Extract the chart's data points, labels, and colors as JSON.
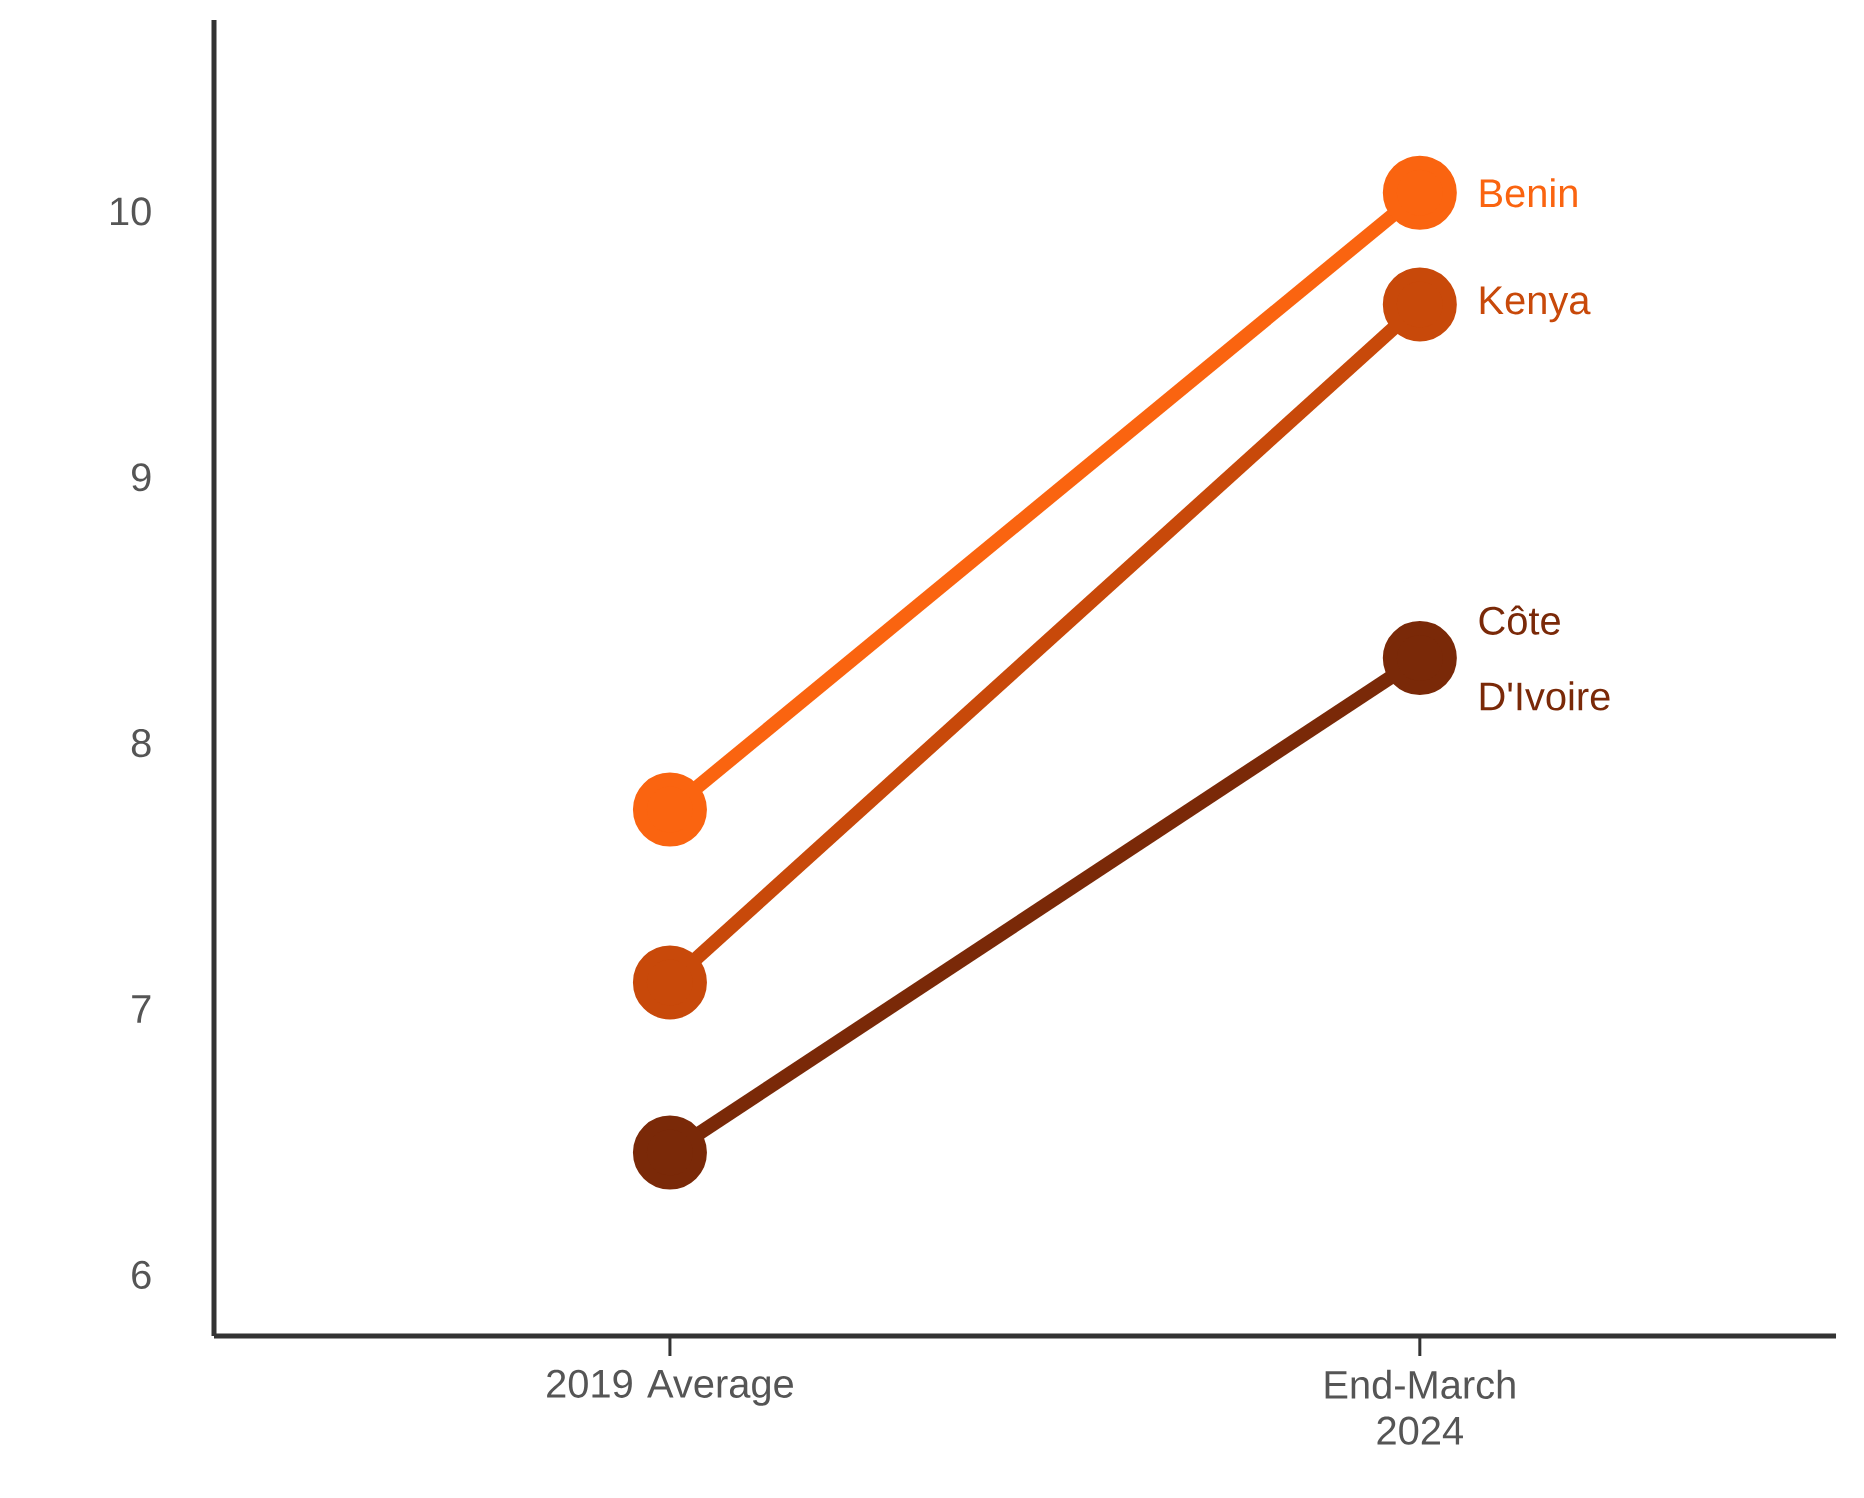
{
  "chart_data": {
    "type": "line",
    "categories": [
      "2019 Average",
      "End-March 2024"
    ],
    "series": [
      {
        "name": "Benin",
        "color": "#fa6410",
        "values": [
          7.75,
          10.07
        ]
      },
      {
        "name": "Kenya",
        "color": "#c8490a",
        "values": [
          7.1,
          9.65
        ]
      },
      {
        "name": "Côte D'Ivoire",
        "color": "#7a2908",
        "values": [
          6.46,
          8.32
        ]
      }
    ],
    "ylim": [
      5.77,
      10.72
    ],
    "yticks": [
      6,
      7,
      8,
      9,
      10
    ],
    "marker": "circle",
    "line_style": "solid",
    "grid": false,
    "legend": "right"
  }
}
